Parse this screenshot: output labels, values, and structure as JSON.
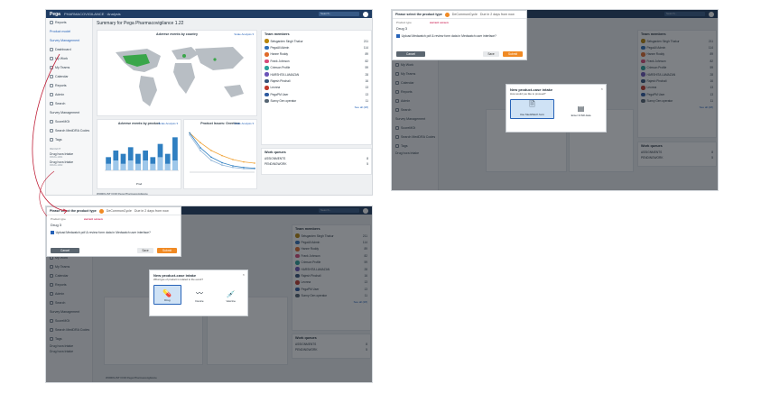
{
  "shot1": {
    "app": {
      "brand": "Pega",
      "breadcrumb": "PHARMACOVIGILANCE · Analysis",
      "search": "Search..."
    },
    "page_title": "Summary for Pega Pharmacovigilance 1.22",
    "sidebar": {
      "items": [
        "Reports",
        "Product model",
        "Survey Management",
        "Dashboard",
        "My Work",
        "My Teams",
        "Calendar",
        "Reports",
        "Admin",
        "Search",
        "Survey Management",
        "ScoreMGt",
        "Search MedDRA Codes",
        "Tags"
      ],
      "recent_head": "RECENT",
      "recent": [
        {
          "title": "Drug hora Intake",
          "sub": "DRUG-1001"
        },
        {
          "title": "Drug hora Intake",
          "sub": "DRUG-1002"
        }
      ]
    },
    "map_card": {
      "title": "Adverse events by country",
      "link": "Scale Analysis ▾"
    },
    "bar_card": {
      "title": "Adverse events by product",
      "link": "Scale Analysis ▾",
      "xlabel": "Prod"
    },
    "line_card": {
      "title": "Product Issues: Overtime",
      "link": "Scale Analysis ▾"
    },
    "footer": "WORKLIST FOR Pega Pharmacovigilance"
  },
  "team": {
    "title": "Team members",
    "members": [
      {
        "name": "Setsgarden Singh Thakur",
        "count": "211",
        "color": "#b8860b"
      },
      {
        "name": "PegaAll Admin",
        "count": "114",
        "color": "#2f6fb8"
      },
      {
        "name": "Hanne Roddy",
        "count": "89",
        "color": "#e06a2a"
      },
      {
        "name": "Frank Johnson",
        "count": "82",
        "color": "#d84a7a"
      },
      {
        "name": "Crimson Profile",
        "count": "59",
        "color": "#2aa19a"
      },
      {
        "name": "HARSHITA LAMAZAN",
        "count": "28",
        "color": "#6b54b8"
      },
      {
        "name": "Rajesh Pinchali",
        "count": "16",
        "color": "#35537a"
      },
      {
        "name": "Leonna",
        "count": "13",
        "color": "#c0392b"
      },
      {
        "name": "PegaPM User",
        "count": "13",
        "color": "#2d5aa0"
      },
      {
        "name": "Sunny Gen operator",
        "count": "11",
        "color": "#566573"
      }
    ],
    "see_all": "See all (28)"
  },
  "queues": {
    "title": "Work queues",
    "rows": [
      {
        "name": "ASSIGNMENTS",
        "count": "8"
      },
      {
        "name": "PENDINGWORK",
        "count": "5"
      }
    ]
  },
  "product_bar": {
    "heading": "Please select the product type",
    "case_link": "DeCommonCycle",
    "due": "Due in 2 days from now",
    "product_type_label": "Product type",
    "current_label": "current screen",
    "product_type_value": "Drug",
    "count_value": "3",
    "checkbox_label": "Upload Medwatch pdf & review form data in Medwatch user interface?",
    "cancel": "Cancel",
    "save": "Save",
    "submit": "Submit"
  },
  "wizard_intake": {
    "title": "New product-case intake",
    "subtitle": "How would you like to proceed?",
    "options": [
      {
        "label": "Use MedWatch form",
        "glyph": "🗎"
      },
      {
        "label": "Enter ICSR data",
        "glyph": "▤"
      }
    ]
  },
  "wizard_type": {
    "title": "New product-case intake",
    "subtitle": "What type of product is related to the event?",
    "options": [
      {
        "label": "Drug",
        "glyph": "💊"
      },
      {
        "label": "Device",
        "glyph": "〰"
      },
      {
        "label": "Vaccine",
        "glyph": "💉"
      }
    ]
  },
  "bar_chart_data": {
    "type": "bar",
    "title": "Adverse events by product",
    "series": [
      {
        "name": "series-1",
        "values": [
          4,
          6,
          5,
          7,
          5,
          6,
          4,
          8,
          5,
          10
        ]
      },
      {
        "name": "series-2",
        "values": [
          2,
          3,
          2,
          3,
          2,
          3,
          2,
          4,
          2,
          3
        ]
      }
    ],
    "ylim": [
      0,
      12
    ]
  },
  "chart_data": {
    "type": "line",
    "title": "Product Issues: Overtime",
    "x": [
      0,
      1,
      2,
      3,
      4,
      5,
      6
    ],
    "series": [
      {
        "values": [
          10,
          7.5,
          5.5,
          4.2,
          3.2,
          2.6,
          2.3
        ]
      },
      {
        "values": [
          10,
          6.2,
          3.8,
          2.4,
          1.6,
          1.2,
          1.0
        ]
      },
      {
        "values": [
          9.5,
          5.5,
          3.0,
          1.8,
          1.2,
          0.9,
          0.8
        ]
      }
    ],
    "ylim": [
      0,
      11
    ]
  },
  "colors": {
    "accent": "#2763b8",
    "brand": "#1f3c63",
    "orange": "#f08a24",
    "flow_arrow": "#c0223a"
  }
}
